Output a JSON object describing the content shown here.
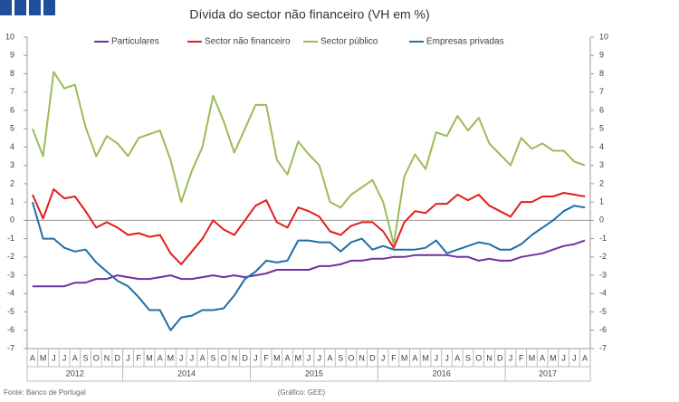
{
  "chart_data": {
    "type": "line",
    "title": "Dívida do sector não financeiro (VH em %)",
    "categories": [
      "A",
      "M",
      "J",
      "J",
      "A",
      "S",
      "O",
      "N",
      "D",
      "J",
      "F",
      "M",
      "A",
      "M",
      "J",
      "J",
      "A",
      "S",
      "O",
      "N",
      "D",
      "J",
      "F",
      "M",
      "A",
      "M",
      "J",
      "J",
      "A",
      "S",
      "O",
      "N",
      "D",
      "J",
      "F",
      "M",
      "A",
      "M",
      "J",
      "J",
      "A",
      "S",
      "O",
      "N",
      "D",
      "J",
      "F",
      "M",
      "A",
      "M",
      "J",
      "J",
      "A"
    ],
    "years": [
      "2012",
      null,
      null,
      null,
      null,
      null,
      null,
      null,
      null,
      "2014",
      null,
      null,
      null,
      null,
      null,
      null,
      null,
      null,
      null,
      null,
      null,
      "2015",
      null,
      null,
      null,
      null,
      null,
      null,
      null,
      null,
      null,
      null,
      null,
      "2016",
      null,
      null,
      null,
      null,
      null,
      null,
      null,
      null,
      null,
      null,
      null,
      "2017",
      null,
      null,
      null,
      null,
      null,
      null,
      null
    ],
    "series": [
      {
        "name": "Particulares",
        "color": "#7030a0",
        "values": [
          -3.6,
          -3.6,
          -3.6,
          -3.6,
          -3.4,
          -3.4,
          -3.2,
          -3.2,
          -3.0,
          -3.1,
          -3.2,
          -3.2,
          -3.1,
          -3.0,
          -3.2,
          -3.2,
          -3.1,
          -3.0,
          -3.1,
          -3.0,
          -3.1,
          -3.0,
          -2.9,
          -2.7,
          -2.7,
          -2.7,
          -2.7,
          -2.5,
          -2.5,
          -2.4,
          -2.2,
          -2.2,
          -2.1,
          -2.1,
          -2.0,
          -2.0,
          -1.9,
          -1.9,
          -1.9,
          -1.9,
          -2.0,
          -2.0,
          -2.2,
          -2.1,
          -2.2,
          -2.2,
          -2.0,
          -1.9,
          -1.8,
          -1.6,
          -1.4,
          -1.3,
          -1.1
        ]
      },
      {
        "name": "Sector não financeiro",
        "color": "#e41c1c",
        "values": [
          1.4,
          0.1,
          1.7,
          1.2,
          1.3,
          0.5,
          -0.4,
          -0.1,
          -0.4,
          -0.8,
          -0.7,
          -0.9,
          -0.8,
          -1.8,
          -2.4,
          -1.7,
          -1.0,
          0.0,
          -0.5,
          -0.8,
          0.0,
          0.8,
          1.1,
          -0.1,
          -0.4,
          0.7,
          0.5,
          0.2,
          -0.6,
          -0.8,
          -0.3,
          -0.1,
          -0.1,
          -0.6,
          -1.5,
          -0.1,
          0.5,
          0.4,
          0.9,
          0.9,
          1.4,
          1.1,
          1.4,
          0.8,
          0.5,
          0.2,
          1.0,
          1.0,
          1.3,
          1.3,
          1.5,
          1.4,
          1.3
        ]
      },
      {
        "name": "Sector público",
        "color": "#9bbb59",
        "values": [
          5.0,
          3.5,
          8.1,
          7.2,
          7.4,
          5.1,
          3.5,
          4.6,
          4.2,
          3.5,
          4.5,
          4.7,
          4.9,
          3.3,
          1.0,
          2.7,
          4.0,
          6.8,
          5.4,
          3.7,
          5.0,
          6.3,
          6.3,
          3.3,
          2.5,
          4.3,
          3.6,
          3.0,
          1.0,
          0.7,
          1.4,
          1.8,
          2.2,
          1.0,
          -1.3,
          2.4,
          3.6,
          2.8,
          4.8,
          4.6,
          5.7,
          4.9,
          5.6,
          4.2,
          3.6,
          3.0,
          4.5,
          3.9,
          4.2,
          3.8,
          3.8,
          3.2,
          3.0
        ]
      },
      {
        "name": "Empresas privadas",
        "color": "#1f6fa8",
        "values": [
          1.0,
          -1.0,
          -1.0,
          -1.5,
          -1.7,
          -1.6,
          -2.3,
          -2.8,
          -3.3,
          -3.6,
          -4.2,
          -4.9,
          -4.9,
          -6.0,
          -5.3,
          -5.2,
          -4.9,
          -4.9,
          -4.8,
          -4.1,
          -3.2,
          -2.8,
          -2.2,
          -2.3,
          -2.2,
          -1.1,
          -1.1,
          -1.2,
          -1.2,
          -1.7,
          -1.2,
          -1.0,
          -1.6,
          -1.4,
          -1.6,
          -1.6,
          -1.6,
          -1.5,
          -1.1,
          -1.8,
          -1.6,
          -1.4,
          -1.2,
          -1.3,
          -1.6,
          -1.6,
          -1.3,
          -0.8,
          -0.4,
          0.0,
          0.5,
          0.8,
          0.7
        ]
      }
    ],
    "ylim": [
      -7,
      10
    ],
    "yticks": [
      -7,
      -6,
      -5,
      -4,
      -3,
      -2,
      -1,
      0,
      1,
      2,
      3,
      4,
      5,
      6,
      7,
      8,
      9,
      10
    ],
    "y2lim": [
      -7,
      10
    ],
    "y2ticks": [
      -7,
      -6,
      -5,
      -4,
      -3,
      -2,
      -1,
      0,
      1,
      2,
      3,
      4,
      5,
      6,
      7,
      8,
      9,
      10
    ],
    "source": "Fonte: Banco de Portugal",
    "credit": "(Gráfico: GEE)"
  }
}
